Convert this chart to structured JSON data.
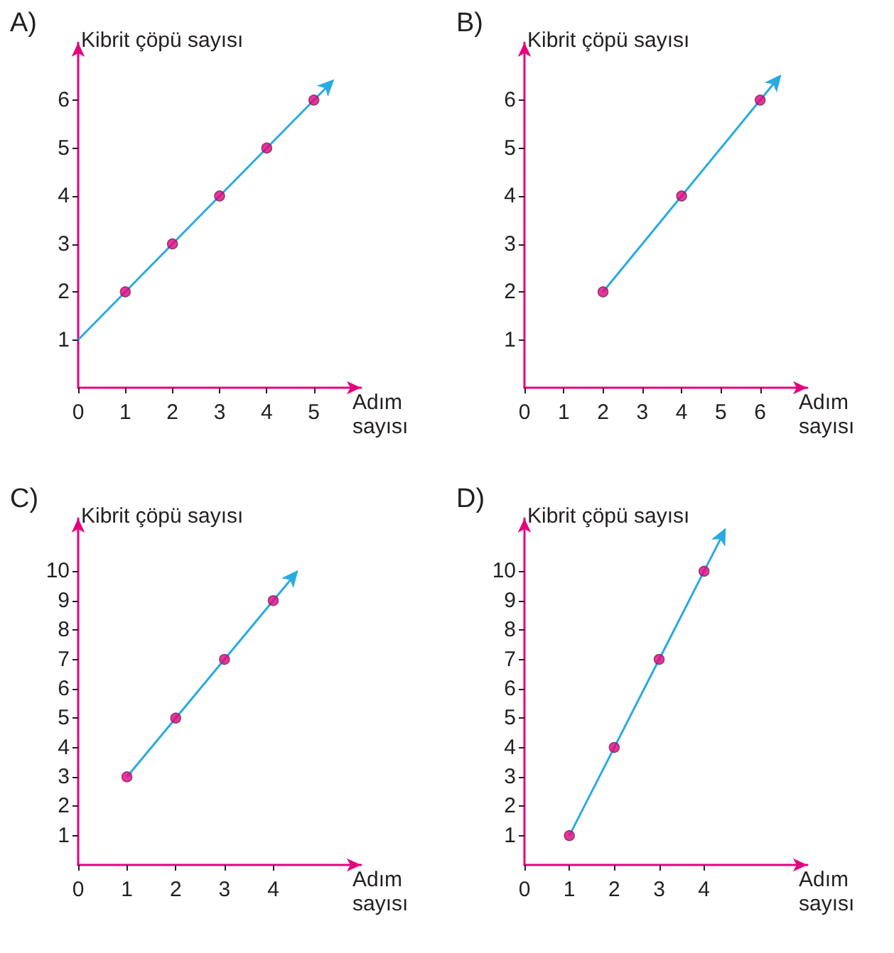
{
  "chart_data": [
    {
      "type": "line",
      "title": "A)",
      "ylabel": "Kibrit çöpü sayısı",
      "xlabel": "Adım sayısı",
      "xlim": [
        0,
        6
      ],
      "ylim": [
        0,
        7.2
      ],
      "xticks": [
        0,
        1,
        2,
        3,
        4,
        5
      ],
      "yticks": [
        1,
        2,
        3,
        4,
        5,
        6
      ],
      "grid": false,
      "series": [
        {
          "marker": "none",
          "color": "#29abe2",
          "x": [
            0,
            1,
            2,
            3,
            4,
            5,
            5.3
          ],
          "values": [
            1,
            2,
            3,
            4,
            5,
            6,
            6.3
          ]
        },
        {
          "type": "scatter",
          "marker": "circle",
          "color": "#e6007e",
          "x": [
            1,
            2,
            3,
            4,
            5
          ],
          "values": [
            2,
            3,
            4,
            5,
            6
          ]
        }
      ]
    },
    {
      "type": "line",
      "title": "B)",
      "ylabel": "Kibrit çöpü sayısı",
      "xlabel": "Adım sayısı",
      "xlim": [
        0,
        7.2
      ],
      "ylim": [
        0,
        7.2
      ],
      "xticks": [
        0,
        1,
        2,
        3,
        4,
        5,
        6
      ],
      "yticks": [
        1,
        2,
        3,
        4,
        5,
        6
      ],
      "grid": false,
      "series": [
        {
          "marker": "none",
          "color": "#29abe2",
          "x": [
            2,
            4,
            6,
            6.4
          ],
          "values": [
            2,
            4,
            6,
            6.4
          ]
        },
        {
          "type": "scatter",
          "marker": "circle",
          "color": "#e6007e",
          "x": [
            2,
            4,
            6
          ],
          "values": [
            2,
            4,
            6
          ]
        }
      ]
    },
    {
      "type": "line",
      "title": "C)",
      "ylabel": "Kibrit çöpü sayısı",
      "xlabel": "Adım sayısı",
      "xlim": [
        0,
        5.8
      ],
      "ylim": [
        0,
        11.8
      ],
      "xticks": [
        0,
        1,
        2,
        3,
        4
      ],
      "yticks": [
        1,
        2,
        3,
        4,
        5,
        6,
        7,
        8,
        9,
        10
      ],
      "grid": false,
      "series": [
        {
          "marker": "none",
          "color": "#29abe2",
          "x": [
            1,
            2,
            3,
            4,
            4.4
          ],
          "values": [
            3,
            5,
            7,
            9,
            9.8
          ]
        },
        {
          "type": "scatter",
          "marker": "circle",
          "color": "#e6007e",
          "x": [
            1,
            2,
            3,
            4
          ],
          "values": [
            3,
            5,
            7,
            9
          ]
        }
      ]
    },
    {
      "type": "line",
      "title": "D)",
      "ylabel": "Kibrit çöpü sayısı",
      "xlabel": "Adım sayısı",
      "xlim": [
        0,
        6.3
      ],
      "ylim": [
        0,
        11.8
      ],
      "xticks": [
        0,
        1,
        2,
        3,
        4
      ],
      "yticks": [
        1,
        2,
        3,
        4,
        5,
        6,
        7,
        8,
        9,
        10
      ],
      "grid": false,
      "series": [
        {
          "marker": "none",
          "color": "#29abe2",
          "x": [
            1,
            2,
            3,
            4,
            4.4
          ],
          "values": [
            1,
            4,
            7,
            10,
            11.2
          ]
        },
        {
          "type": "scatter",
          "marker": "circle",
          "color": "#e6007e",
          "x": [
            1,
            2,
            3,
            4
          ],
          "values": [
            1,
            4,
            7,
            10
          ]
        }
      ]
    }
  ]
}
